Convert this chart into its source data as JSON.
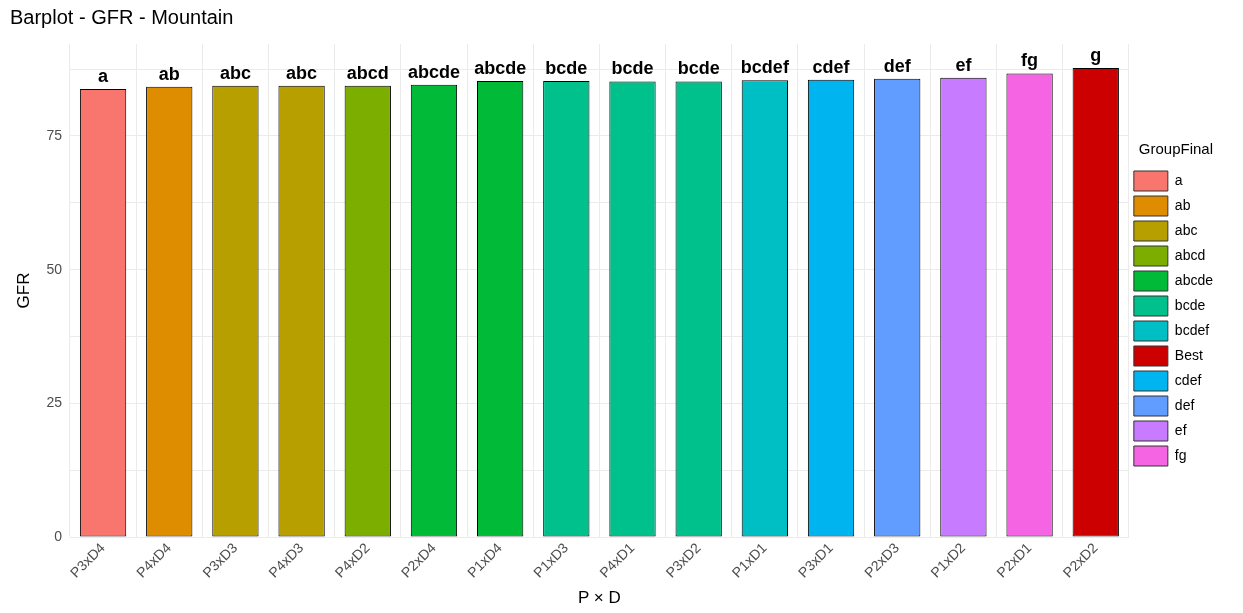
{
  "chart_data": {
    "type": "bar",
    "title": "Barplot - GFR - Mountain",
    "xlabel": "P × D",
    "ylabel": "GFR",
    "legend_title": "GroupFinal",
    "legend": "right",
    "grid": true,
    "categories": [
      "P3xD4",
      "P4xD4",
      "P3xD3",
      "P4xD3",
      "P4xD2",
      "P2xD4",
      "P1xD4",
      "P1xD3",
      "P4xD1",
      "P3xD2",
      "P1xD1",
      "P3xD1",
      "P2xD3",
      "P1xD2",
      "P2xD1",
      "P2xD2"
    ],
    "ylim": [
      0,
      92.2
    ],
    "yticks": [
      0,
      {
        "value": 12.5,
        "label": null
      },
      25,
      {
        "value": 37.5,
        "label": null
      },
      50,
      {
        "value": 62.5,
        "label": null
      },
      75,
      {
        "value": 87.5,
        "label": null
      }
    ],
    "series": [
      {
        "name": "a",
        "color": "#f8766d",
        "values": [
          83.8,
          null,
          null,
          null,
          null,
          null,
          null,
          null,
          null,
          null,
          null,
          null,
          null,
          null,
          null,
          null
        ],
        "value_labels": [
          "a",
          null,
          null,
          null,
          null,
          null,
          null,
          null,
          null,
          null,
          null,
          null,
          null,
          null,
          null,
          null
        ]
      },
      {
        "name": "ab",
        "color": "#de8c00",
        "values": [
          null,
          84.2,
          null,
          null,
          null,
          null,
          null,
          null,
          null,
          null,
          null,
          null,
          null,
          null,
          null,
          null
        ],
        "value_labels": [
          null,
          "ab",
          null,
          null,
          null,
          null,
          null,
          null,
          null,
          null,
          null,
          null,
          null,
          null,
          null,
          null
        ]
      },
      {
        "name": "abc",
        "color": "#b79f00",
        "values": [
          null,
          null,
          84.4,
          84.4,
          null,
          null,
          null,
          null,
          null,
          null,
          null,
          null,
          null,
          null,
          null,
          null
        ],
        "value_labels": [
          null,
          null,
          "abc",
          "abc",
          null,
          null,
          null,
          null,
          null,
          null,
          null,
          null,
          null,
          null,
          null,
          null
        ]
      },
      {
        "name": "abcd",
        "color": "#7cae00",
        "values": [
          null,
          null,
          null,
          null,
          84.4,
          null,
          null,
          null,
          null,
          null,
          null,
          null,
          null,
          null,
          null,
          null
        ],
        "value_labels": [
          null,
          null,
          null,
          null,
          "abcd",
          null,
          null,
          null,
          null,
          null,
          null,
          null,
          null,
          null,
          null,
          null
        ]
      },
      {
        "name": "abcde",
        "color": "#00ba38",
        "values": [
          null,
          null,
          null,
          null,
          null,
          84.6,
          85.3,
          null,
          null,
          null,
          null,
          null,
          null,
          null,
          null,
          null
        ],
        "value_labels": [
          null,
          null,
          null,
          null,
          null,
          "abcde",
          "abcde",
          null,
          null,
          null,
          null,
          null,
          null,
          null,
          null,
          null
        ]
      },
      {
        "name": "bcde",
        "color": "#00c08b",
        "values": [
          null,
          null,
          null,
          null,
          null,
          null,
          null,
          85.3,
          85.2,
          85.2,
          null,
          null,
          null,
          null,
          null,
          null
        ],
        "value_labels": [
          null,
          null,
          null,
          null,
          null,
          null,
          null,
          "bcde",
          "bcde",
          "bcde",
          null,
          null,
          null,
          null,
          null,
          null
        ]
      },
      {
        "name": "bcdef",
        "color": "#00bfc4",
        "values": [
          null,
          null,
          null,
          null,
          null,
          null,
          null,
          null,
          null,
          null,
          85.4,
          null,
          null,
          null,
          null,
          null
        ],
        "value_labels": [
          null,
          null,
          null,
          null,
          null,
          null,
          null,
          null,
          null,
          null,
          "bcdef",
          null,
          null,
          null,
          null,
          null
        ]
      },
      {
        "name": "Best",
        "color": "#cc0000",
        "values": [
          null,
          null,
          null,
          null,
          null,
          null,
          null,
          null,
          null,
          null,
          null,
          null,
          null,
          null,
          null,
          87.7
        ],
        "value_labels": [
          null,
          null,
          null,
          null,
          null,
          null,
          null,
          null,
          null,
          null,
          null,
          null,
          null,
          null,
          null,
          "g"
        ]
      },
      {
        "name": "cdef",
        "color": "#00b4f0",
        "values": [
          null,
          null,
          null,
          null,
          null,
          null,
          null,
          null,
          null,
          null,
          null,
          85.5,
          null,
          null,
          null,
          null
        ],
        "value_labels": [
          null,
          null,
          null,
          null,
          null,
          null,
          null,
          null,
          null,
          null,
          null,
          "cdef",
          null,
          null,
          null,
          null
        ]
      },
      {
        "name": "def",
        "color": "#619cff",
        "values": [
          null,
          null,
          null,
          null,
          null,
          null,
          null,
          null,
          null,
          null,
          null,
          null,
          85.7,
          null,
          null,
          null
        ],
        "value_labels": [
          null,
          null,
          null,
          null,
          null,
          null,
          null,
          null,
          null,
          null,
          null,
          null,
          "def",
          null,
          null,
          null
        ]
      },
      {
        "name": "ef",
        "color": "#c77cff",
        "values": [
          null,
          null,
          null,
          null,
          null,
          null,
          null,
          null,
          null,
          null,
          null,
          null,
          null,
          85.9,
          null,
          null
        ],
        "value_labels": [
          null,
          null,
          null,
          null,
          null,
          null,
          null,
          null,
          null,
          null,
          null,
          null,
          null,
          "ef",
          null,
          null
        ]
      },
      {
        "name": "fg",
        "color": "#f564e3",
        "values": [
          null,
          null,
          null,
          null,
          null,
          null,
          null,
          null,
          null,
          null,
          null,
          null,
          null,
          null,
          86.7,
          null
        ],
        "value_labels": [
          null,
          null,
          null,
          null,
          null,
          null,
          null,
          null,
          null,
          null,
          null,
          null,
          null,
          null,
          "fg",
          null
        ]
      }
    ]
  }
}
